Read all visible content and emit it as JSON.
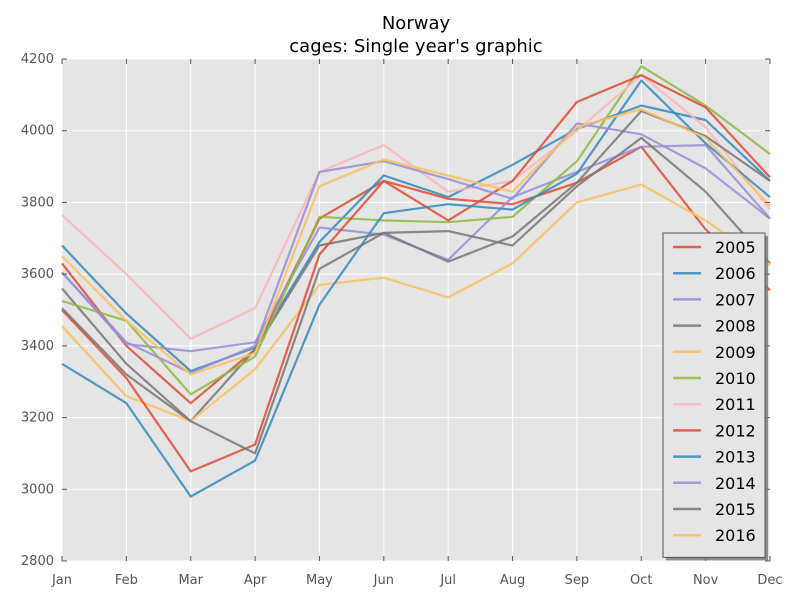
{
  "chart_data": {
    "type": "line",
    "title": "Norway",
    "subtitle": "cages: Single year's graphic",
    "xlabel": "",
    "ylabel": "",
    "categories": [
      "Jan",
      "Feb",
      "Mar",
      "Apr",
      "May",
      "Jun",
      "Jul",
      "Aug",
      "Sep",
      "Oct",
      "Nov",
      "Dec"
    ],
    "ylim": [
      2800,
      4200
    ],
    "yticks": [
      2800,
      3000,
      3200,
      3400,
      3600,
      3800,
      4000,
      4200
    ],
    "grid": true,
    "legend_position": "lower-right",
    "series": [
      {
        "name": "2005",
        "color": "#E24A33",
        "values": [
          3630,
          3400,
          3240,
          3390,
          3755,
          3860,
          3810,
          3795,
          3855,
          3955,
          3725,
          3555
        ]
      },
      {
        "name": "2006",
        "color": "#348ABD",
        "values": [
          3680,
          3490,
          3330,
          3395,
          3690,
          3875,
          3815,
          3905,
          4005,
          4070,
          4030,
          3860
        ]
      },
      {
        "name": "2007",
        "color": "#988ED5",
        "values": [
          3605,
          3405,
          3385,
          3410,
          3730,
          3710,
          3640,
          3815,
          3885,
          3955,
          3960,
          3755
        ]
      },
      {
        "name": "2008",
        "color": "#777777",
        "values": [
          3560,
          3350,
          3190,
          3390,
          3680,
          3715,
          3720,
          3680,
          3845,
          3980,
          3830,
          3630
        ]
      },
      {
        "name": "2009",
        "color": "#FBC15E",
        "values": [
          3455,
          3260,
          3190,
          3335,
          3570,
          3590,
          3535,
          3630,
          3800,
          3850,
          3750,
          3625
        ]
      },
      {
        "name": "2010",
        "color": "#8EBA42",
        "values": [
          3525,
          3470,
          3265,
          3370,
          3760,
          3750,
          3745,
          3760,
          3915,
          4180,
          4070,
          3935
        ]
      },
      {
        "name": "2011",
        "color": "#FFB5B8",
        "values": [
          3765,
          3600,
          3420,
          3505,
          3885,
          3960,
          3830,
          3860,
          4000,
          4155,
          4010,
          3780
        ]
      },
      {
        "name": "2012",
        "color": "#E24A33",
        "values": [
          3500,
          3310,
          3050,
          3125,
          3655,
          3860,
          3750,
          3860,
          4080,
          4155,
          4065,
          3870
        ]
      },
      {
        "name": "2013",
        "color": "#348ABD",
        "values": [
          3350,
          3240,
          2980,
          3080,
          3515,
          3770,
          3795,
          3780,
          3880,
          4140,
          3965,
          3815
        ]
      },
      {
        "name": "2014",
        "color": "#988ED5",
        "values": [
          3605,
          3410,
          3325,
          3400,
          3885,
          3915,
          3865,
          3810,
          4020,
          3990,
          3895,
          3755
        ]
      },
      {
        "name": "2015",
        "color": "#777777",
        "values": [
          3505,
          3320,
          3190,
          3100,
          3615,
          3715,
          3635,
          3705,
          3855,
          4055,
          3985,
          3860
        ]
      },
      {
        "name": "2016",
        "color": "#FBC15E",
        "values": [
          3650,
          3470,
          3320,
          3380,
          3845,
          3920,
          3875,
          3830,
          4010,
          4060,
          3980,
          3790
        ]
      }
    ]
  }
}
